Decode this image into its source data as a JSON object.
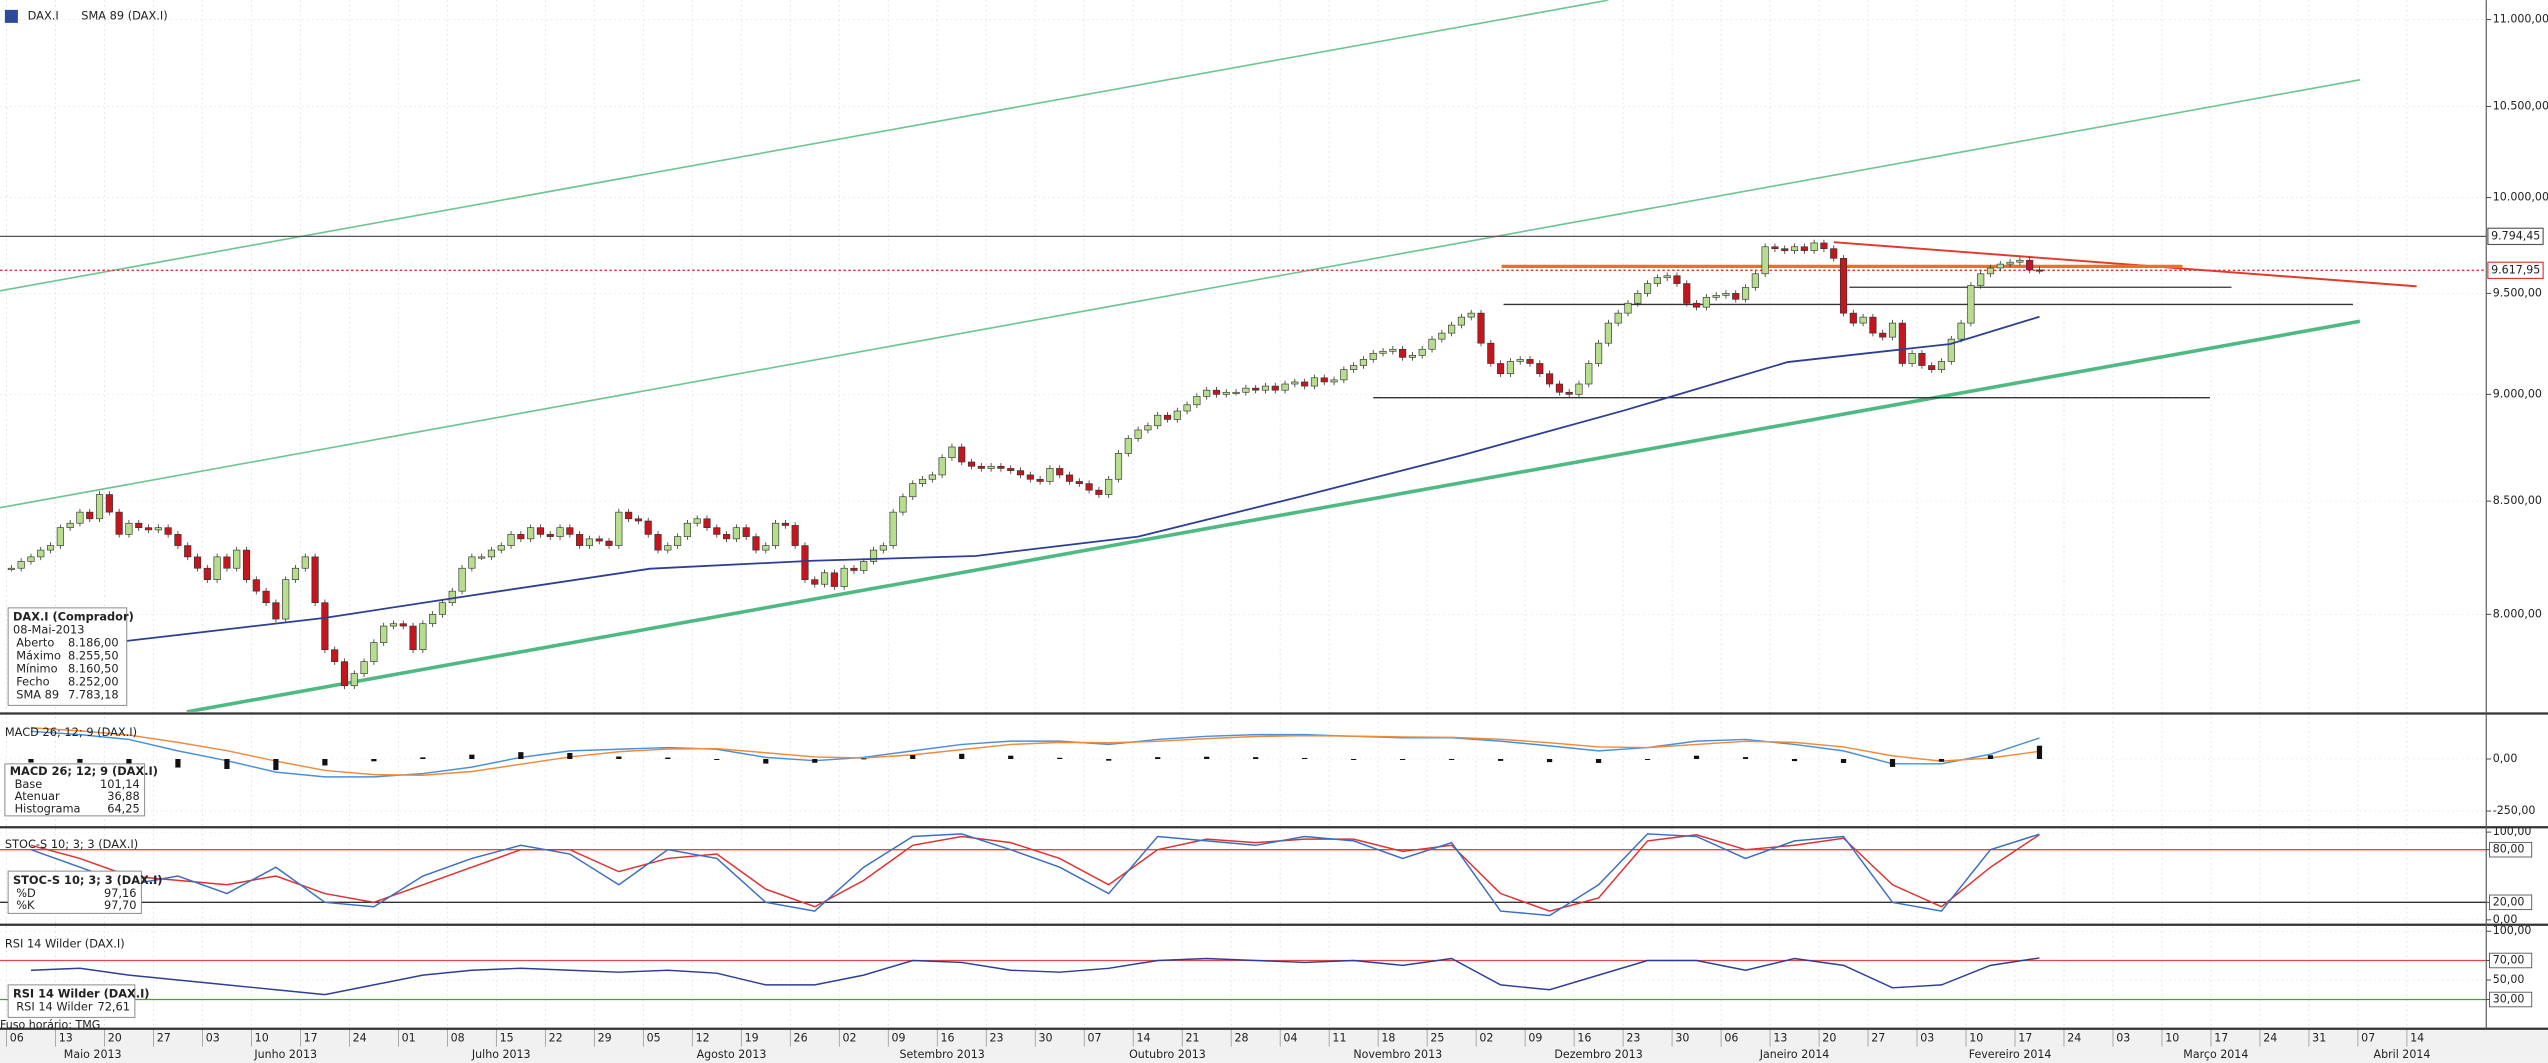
{
  "chart_data": [
    {
      "type": "candlestick",
      "title": "DAX.I",
      "log": true,
      "xlim": [
        -1.16,
        252.6
      ],
      "ylim": [
        7593,
        11115
      ],
      "yticks": [
        {
          "value": 11000,
          "label": "11.000,00"
        },
        {
          "value": 10500,
          "label": "10.500,00"
        },
        {
          "value": 10000,
          "label": "10.000,00"
        },
        {
          "value": 9500,
          "label": "9.500,00"
        },
        {
          "value": 9000,
          "label": "9.000,00"
        },
        {
          "value": 8500,
          "label": "8.500,00"
        },
        {
          "value": 8000,
          "label": "8.000,00"
        }
      ],
      "color_up": "#b7de8c",
      "color_down": "#c4161c",
      "values": [
        8200,
        8230,
        8250,
        8280,
        8300,
        8380,
        8400,
        8450,
        8420,
        8530,
        8450,
        8350,
        8400,
        8380,
        8370,
        8380,
        8350,
        8300,
        8250,
        8200,
        8150,
        8250,
        8200,
        8280,
        8150,
        8100,
        8050,
        7980,
        8150,
        8200,
        8250,
        8050,
        7850,
        7800,
        7700,
        7750,
        7800,
        7880,
        7950,
        7960,
        7950,
        7850,
        7960,
        8000,
        8050,
        8100,
        8200,
        8250,
        8250,
        8280,
        8300,
        8350,
        8330,
        8380,
        8350,
        8340,
        8380,
        8350,
        8300,
        8330,
        8320,
        8300,
        8450,
        8420,
        8410,
        8350,
        8280,
        8300,
        8340,
        8400,
        8420,
        8380,
        8350,
        8330,
        8380,
        8340,
        8280,
        8300,
        8400,
        8390,
        8300,
        8150,
        8130,
        8180,
        8120,
        8200,
        8190,
        8230,
        8280,
        8300,
        8450,
        8520,
        8580,
        8600,
        8620,
        8700,
        8750,
        8680,
        8660,
        8650,
        8660,
        8650,
        8640,
        8620,
        8600,
        8590,
        8650,
        8620,
        8590,
        8580,
        8550,
        8530,
        8600,
        8720,
        8790,
        8830,
        8850,
        8900,
        8880,
        8920,
        8950,
        8990,
        9020,
        9000,
        9010,
        9010,
        9030,
        9020,
        9040,
        9020,
        9050,
        9060,
        9040,
        9080,
        9060,
        9070,
        9120,
        9140,
        9170,
        9200,
        9210,
        9220,
        9180,
        9190,
        9220,
        9270,
        9300,
        9340,
        9380,
        9400,
        9250,
        9150,
        9100,
        9160,
        9170,
        9150,
        9100,
        9050,
        9010,
        9000,
        9050,
        9150,
        9250,
        9350,
        9400,
        9450,
        9500,
        9550,
        9580,
        9590,
        9550,
        9450,
        9430,
        9480,
        9490,
        9500,
        9470,
        9530,
        9600,
        9740,
        9730,
        9720,
        9740,
        9720,
        9760,
        9730,
        9680,
        9400,
        9350,
        9380,
        9300,
        9280,
        9350,
        9150,
        9200,
        9140,
        9120,
        9160,
        9270,
        9350,
        9540,
        9600,
        9630,
        9650,
        9660,
        9670,
        9620,
        9618
      ],
      "sma": {
        "name": "SMA 89 (DAX.I)",
        "color": "#2e3d96",
        "x": [
          11.8,
          32,
          48.6,
          65.2,
          81.8,
          98.4,
          115,
          131.5,
          148.1,
          164.7,
          181.3,
          197.9,
          207
        ],
        "values": [
          7887,
          7985,
          8092,
          8198,
          8233,
          8254,
          8340,
          8520,
          8712,
          8924,
          9157,
          9246,
          9382
        ]
      },
      "trendlines": [
        {
          "color": "#6cc593",
          "width": 1,
          "x": [
            -1.16,
            163
          ],
          "values": [
            9513,
            11115
          ]
        },
        {
          "color": "#6cc593",
          "width": 1,
          "x": [
            -1.16,
            239.7
          ],
          "values": [
            8470,
            10651
          ]
        },
        {
          "color": "#4fb983",
          "width": 2.2,
          "x": [
            17.9,
            239.7
          ],
          "values": [
            7593,
            9359
          ]
        },
        {
          "color": "#e03a2a",
          "width": 1.2,
          "x": [
            186,
            245.5
          ],
          "values": [
            9764,
            9536
          ]
        }
      ],
      "hlines": [
        {
          "color": "#f07020",
          "width": 2,
          "x": [
            152.1,
            221.6
          ],
          "value": 9638
        },
        {
          "color": "#333333",
          "width": 0.8,
          "x": [
            187.6,
            226.6
          ],
          "value": 9531
        },
        {
          "color": "#333333",
          "width": 0.8,
          "x": [
            152.3,
            239
          ],
          "value": 9444
        },
        {
          "color": "#333333",
          "width": 0.8,
          "x": [
            139,
            224.4
          ],
          "value": 8984
        }
      ],
      "price_labels": [
        {
          "value": 9794.45,
          "label": "9.794,45",
          "color": "#555555",
          "dash": false
        },
        {
          "value": 9617.95,
          "label": "9.617,95",
          "color": "#e03030",
          "dash": true
        }
      ],
      "xticks": [
        {
          "value": 0,
          "label": "06"
        },
        {
          "value": 5,
          "label": "13"
        },
        {
          "value": 10,
          "label": "20"
        },
        {
          "value": 15,
          "label": "27"
        },
        {
          "value": 20,
          "label": "03"
        },
        {
          "value": 25,
          "label": "10"
        },
        {
          "value": 30,
          "label": "17"
        },
        {
          "value": 35,
          "label": "24"
        },
        {
          "value": 40,
          "label": "01"
        },
        {
          "value": 45,
          "label": "08"
        },
        {
          "value": 50,
          "label": "15"
        },
        {
          "value": 55,
          "label": "22"
        },
        {
          "value": 60,
          "label": "29"
        },
        {
          "value": 65,
          "label": "05"
        },
        {
          "value": 70,
          "label": "12"
        },
        {
          "value": 75,
          "label": "19"
        },
        {
          "value": 80,
          "label": "26"
        },
        {
          "value": 85,
          "label": "02"
        },
        {
          "value": 90,
          "label": "09"
        },
        {
          "value": 95,
          "label": "16"
        },
        {
          "value": 100,
          "label": "23"
        },
        {
          "value": 105,
          "label": "30"
        },
        {
          "value": 110,
          "label": "07"
        },
        {
          "value": 115,
          "label": "14"
        },
        {
          "value": 120,
          "label": "21"
        },
        {
          "value": 125,
          "label": "28"
        },
        {
          "value": 130,
          "label": "04"
        },
        {
          "value": 135,
          "label": "11"
        },
        {
          "value": 140,
          "label": "18"
        },
        {
          "value": 145,
          "label": "25"
        },
        {
          "value": 150,
          "label": "02"
        },
        {
          "value": 155,
          "label": "09"
        },
        {
          "value": 160,
          "label": "16"
        },
        {
          "value": 165,
          "label": "23"
        },
        {
          "value": 170,
          "label": "30"
        },
        {
          "value": 175,
          "label": "06"
        },
        {
          "value": 180,
          "label": "13"
        },
        {
          "value": 185,
          "label": "20"
        },
        {
          "value": 190,
          "label": "27"
        },
        {
          "value": 195,
          "label": "03"
        },
        {
          "value": 200,
          "label": "10"
        },
        {
          "value": 205,
          "label": "17"
        },
        {
          "value": 210,
          "label": "24"
        },
        {
          "value": 215,
          "label": "03"
        },
        {
          "value": 220,
          "label": "10"
        },
        {
          "value": 225,
          "label": "17"
        },
        {
          "value": 230,
          "label": "24"
        },
        {
          "value": 235,
          "label": "31"
        },
        {
          "value": 240,
          "label": "07"
        },
        {
          "value": 245,
          "label": "14"
        }
      ],
      "months": [
        {
          "value": 8.3,
          "label": "Maio 2013"
        },
        {
          "value": 28,
          "label": "Junho 2013"
        },
        {
          "value": 50,
          "label": "Julho 2013"
        },
        {
          "value": 73.5,
          "label": "Agosto 2013"
        },
        {
          "value": 95,
          "label": "Setembro 2013"
        },
        {
          "value": 118,
          "label": "Outubro 2013"
        },
        {
          "value": 141.5,
          "label": "Novembro 2013"
        },
        {
          "value": 162,
          "label": "Dezembro 2013"
        },
        {
          "value": 182,
          "label": "Janeiro 2014"
        },
        {
          "value": 204,
          "label": "Fevereiro 2014"
        },
        {
          "value": 225,
          "label": "Março 2014"
        },
        {
          "value": 244,
          "label": "Abril 2014"
        }
      ]
    },
    {
      "type": "line",
      "title": "MACD 26; 12; 9 (DAX.I)",
      "ylim": [
        -320,
        203
      ],
      "yticks": [
        {
          "value": 0,
          "label": "0,00"
        },
        {
          "value": -250,
          "label": "-250,00"
        }
      ],
      "x": [
        2,
        7,
        12,
        17,
        22,
        27,
        32,
        37,
        42,
        47,
        52,
        57,
        62,
        67,
        72,
        77,
        82,
        87,
        92,
        97,
        102,
        107,
        112,
        117,
        122,
        127,
        132,
        137,
        142,
        147,
        152,
        157,
        162,
        167,
        172,
        177,
        182,
        187,
        192,
        197,
        202,
        207
      ],
      "series": [
        {
          "name": "Base",
          "color": "#4a90d9",
          "values": [
            133,
            117,
            94,
            39,
            -8,
            -63,
            -86,
            -86,
            -70,
            -39,
            8,
            39,
            47,
            55,
            47,
            8,
            -8,
            8,
            39,
            70,
            86,
            86,
            70,
            94,
            109,
            117,
            117,
            109,
            102,
            102,
            86,
            63,
            39,
            55,
            86,
            94,
            70,
            39,
            -23,
            -23,
            23,
            101
          ]
        },
        {
          "name": "Atenuar",
          "color": "#f08a3c",
          "values": [
            150,
            135,
            115,
            80,
            40,
            -10,
            -55,
            -75,
            -78,
            -60,
            -25,
            10,
            35,
            48,
            50,
            30,
            10,
            5,
            20,
            45,
            70,
            80,
            78,
            85,
            98,
            108,
            112,
            110,
            106,
            104,
            95,
            78,
            58,
            55,
            70,
            85,
            80,
            58,
            15,
            -10,
            5,
            37
          ]
        },
        {
          "name": "Histograma",
          "color": "#111111",
          "style": "bar",
          "values": [
            -17,
            -18,
            -21,
            -41,
            -48,
            -53,
            -31,
            -11,
            8,
            21,
            33,
            29,
            12,
            7,
            -3,
            -22,
            -18,
            3,
            19,
            25,
            16,
            6,
            -8,
            9,
            11,
            9,
            5,
            -1,
            -4,
            -2,
            -9,
            -15,
            -19,
            0,
            16,
            9,
            -10,
            -19,
            -38,
            -13,
            18,
            64
          ]
        }
      ]
    },
    {
      "type": "line",
      "title": "STOC-S 10; 3; 3 (DAX.I)",
      "ylim": [
        -3.7,
        103.7
      ],
      "yticks": [
        {
          "value": 100,
          "label": "100,00"
        },
        {
          "value": 80,
          "label": "80,00",
          "line_color": "#e04848"
        },
        {
          "value": 20,
          "label": "20,00",
          "line_color": "#333333"
        },
        {
          "value": 0,
          "label": "0,00"
        }
      ],
      "x": [
        2,
        7,
        12,
        17,
        22,
        27,
        32,
        37,
        42,
        47,
        52,
        57,
        62,
        67,
        72,
        77,
        82,
        87,
        92,
        97,
        102,
        107,
        112,
        117,
        122,
        127,
        132,
        137,
        142,
        147,
        152,
        157,
        162,
        167,
        172,
        177,
        182,
        187,
        192,
        197,
        202,
        207
      ],
      "series": [
        {
          "name": "%D",
          "color": "#e03030",
          "values": [
            85,
            70,
            50,
            45,
            40,
            50,
            30,
            20,
            40,
            60,
            80,
            80,
            55,
            70,
            75,
            35,
            15,
            45,
            85,
            95,
            88,
            70,
            40,
            80,
            92,
            88,
            92,
            92,
            78,
            85,
            30,
            10,
            25,
            90,
            97,
            80,
            85,
            93,
            40,
            15,
            60,
            97.16
          ]
        },
        {
          "name": "%K",
          "color": "#3a6fbf",
          "values": [
            80,
            60,
            40,
            50,
            30,
            60,
            20,
            15,
            50,
            70,
            85,
            75,
            40,
            80,
            70,
            20,
            10,
            60,
            95,
            98,
            80,
            60,
            30,
            95,
            90,
            85,
            95,
            90,
            70,
            88,
            10,
            5,
            40,
            98,
            95,
            70,
            90,
            95,
            20,
            10,
            80,
            97.7
          ]
        }
      ]
    },
    {
      "type": "line",
      "title": "RSI 14 Wilder (DAX.I)",
      "ylim": [
        1.7,
        103.3
      ],
      "yticks": [
        {
          "value": 100,
          "label": "100,00"
        },
        {
          "value": 70,
          "label": "70,00",
          "line_color": "#e04848"
        },
        {
          "value": 50,
          "label": "50,00"
        },
        {
          "value": 30,
          "label": "30,00",
          "line_color": "#40a040"
        }
      ],
      "x": [
        2,
        7,
        12,
        17,
        22,
        27,
        32,
        37,
        42,
        47,
        52,
        57,
        62,
        67,
        72,
        77,
        82,
        87,
        92,
        97,
        102,
        107,
        112,
        117,
        122,
        127,
        132,
        137,
        142,
        147,
        152,
        157,
        162,
        167,
        172,
        177,
        182,
        187,
        192,
        197,
        202,
        207
      ],
      "series": [
        {
          "name": "RSI 14 Wilder",
          "color": "#2e3d96",
          "values": [
            60,
            62,
            55,
            50,
            45,
            40,
            35,
            45,
            55,
            60,
            62,
            60,
            58,
            60,
            57,
            45,
            45,
            55,
            70,
            68,
            60,
            58,
            62,
            70,
            72,
            70,
            68,
            70,
            65,
            72,
            45,
            40,
            55,
            70,
            70,
            60,
            72,
            65,
            42,
            45,
            65,
            72.61
          ]
        }
      ]
    }
  ],
  "info": {
    "price": {
      "title": "DAX.I (Comprador)",
      "date": "08-Mai-2013",
      "rows": [
        [
          "Aberto",
          "8.186,00"
        ],
        [
          "Máximo",
          "8.255,50"
        ],
        [
          "Mínimo",
          "8.160,50"
        ],
        [
          "Fecho",
          "8.252,00"
        ],
        [
          "SMA 89",
          "7.783,18"
        ]
      ]
    },
    "macd": [
      "101,14",
      "36,88",
      "64,25"
    ],
    "stoch": [
      "97,16",
      "97,70"
    ],
    "rsi": [
      "72,61"
    ]
  },
  "timezone": "Fuso horário: TMG"
}
